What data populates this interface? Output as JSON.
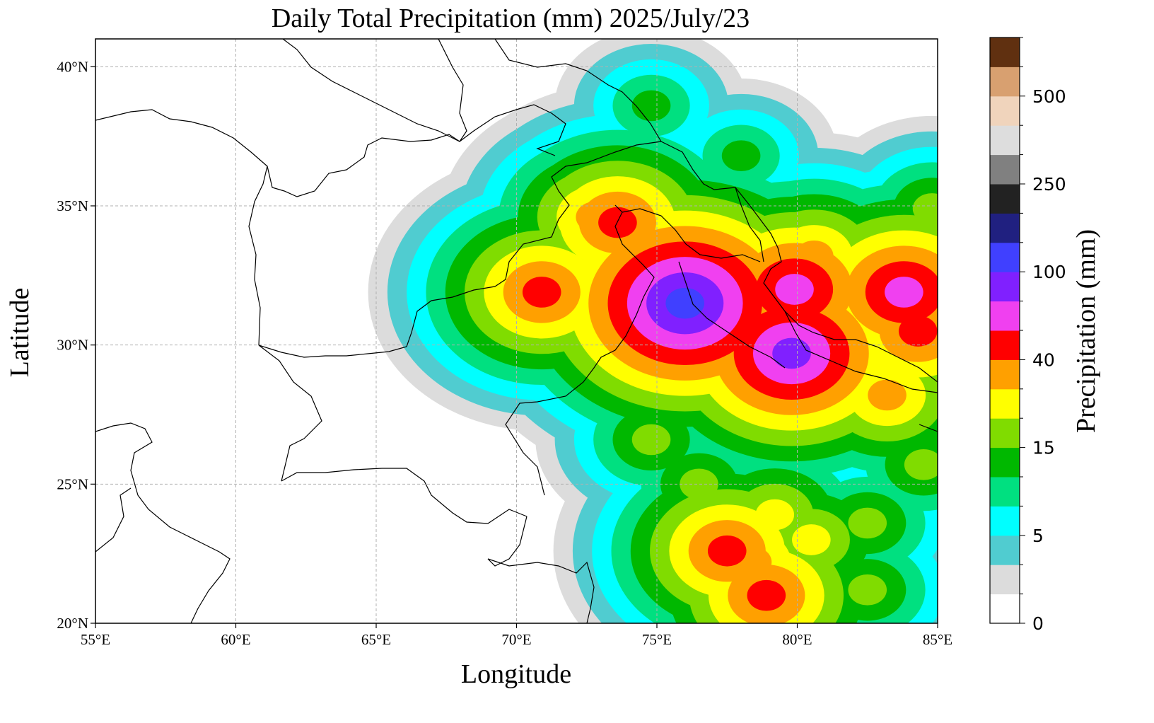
{
  "chart_data": {
    "type": "heatmap",
    "title": "Daily Total Precipitation (mm)  2025/July/23",
    "xlabel": "Longitude",
    "ylabel": "Latitude",
    "xlim": [
      55,
      85
    ],
    "ylim": [
      20,
      41
    ],
    "grid": true,
    "x_ticks": [
      {
        "value": 55,
        "label": "55°E"
      },
      {
        "value": 60,
        "label": "60°E"
      },
      {
        "value": 65,
        "label": "65°E"
      },
      {
        "value": 70,
        "label": "70°E"
      },
      {
        "value": 75,
        "label": "75°E"
      },
      {
        "value": 80,
        "label": "80°E"
      },
      {
        "value": 85,
        "label": "85°E"
      }
    ],
    "y_ticks": [
      {
        "value": 20,
        "label": "20°N"
      },
      {
        "value": 25,
        "label": "25°N"
      },
      {
        "value": 30,
        "label": "30°N"
      },
      {
        "value": 35,
        "label": "35°N"
      },
      {
        "value": 40,
        "label": "40°N"
      }
    ],
    "colorbar": {
      "label": "Precipitation (mm)",
      "colors": [
        "#ffffff",
        "#dcdcdc",
        "#50ccd0",
        "#00ffff",
        "#00e080",
        "#00b800",
        "#80dc00",
        "#ffff00",
        "#ffa000",
        "#ff0000",
        "#f040f0",
        "#8020ff",
        "#4040ff",
        "#202080",
        "#222222",
        "#808080",
        "#dddddd",
        "#f0d4bc",
        "#d8a070",
        "#603010"
      ],
      "tick_labels": [
        {
          "index": 0,
          "label": "0"
        },
        {
          "index": 3,
          "label": "5"
        },
        {
          "index": 6,
          "label": "15"
        },
        {
          "index": 9,
          "label": "40"
        },
        {
          "index": 12,
          "label": "100"
        },
        {
          "index": 15,
          "label": "250"
        },
        {
          "index": 18,
          "label": "500"
        }
      ]
    },
    "rain_cores": [
      {
        "lon": 76.0,
        "lat": 31.5,
        "level": 12
      },
      {
        "lon": 75.6,
        "lat": 31.9,
        "level": 11
      },
      {
        "lon": 76.2,
        "lat": 30.8,
        "level": 8
      },
      {
        "lon": 70.9,
        "lat": 31.9,
        "level": 9
      },
      {
        "lon": 72.8,
        "lat": 34.6,
        "level": 8
      },
      {
        "lon": 73.6,
        "lat": 34.4,
        "level": 9
      },
      {
        "lon": 74.3,
        "lat": 33.2,
        "level": 8
      },
      {
        "lon": 80.6,
        "lat": 33.2,
        "level": 8
      },
      {
        "lon": 79.9,
        "lat": 32.0,
        "level": 10
      },
      {
        "lon": 79.8,
        "lat": 29.7,
        "level": 11
      },
      {
        "lon": 83.8,
        "lat": 31.9,
        "level": 10
      },
      {
        "lon": 84.3,
        "lat": 30.5,
        "level": 9
      },
      {
        "lon": 83.2,
        "lat": 28.2,
        "level": 8
      },
      {
        "lon": 77.5,
        "lat": 22.6,
        "level": 9
      },
      {
        "lon": 78.4,
        "lat": 22.2,
        "level": 8
      },
      {
        "lon": 78.9,
        "lat": 21.0,
        "level": 9
      },
      {
        "lon": 79.2,
        "lat": 23.9,
        "level": 7
      },
      {
        "lon": 80.5,
        "lat": 23.0,
        "level": 7
      },
      {
        "lon": 82.5,
        "lat": 23.6,
        "level": 6
      },
      {
        "lon": 76.5,
        "lat": 25.0,
        "level": 6
      },
      {
        "lon": 74.8,
        "lat": 26.6,
        "level": 6
      },
      {
        "lon": 84.8,
        "lat": 34.9,
        "level": 6
      },
      {
        "lon": 78.0,
        "lat": 36.8,
        "level": 5
      },
      {
        "lon": 74.8,
        "lat": 38.6,
        "level": 5
      },
      {
        "lon": 74.5,
        "lat": 27.8,
        "level": 5
      },
      {
        "lon": 82.5,
        "lat": 21.2,
        "level": 6
      },
      {
        "lon": 84.5,
        "lat": 25.7,
        "level": 6
      }
    ]
  }
}
